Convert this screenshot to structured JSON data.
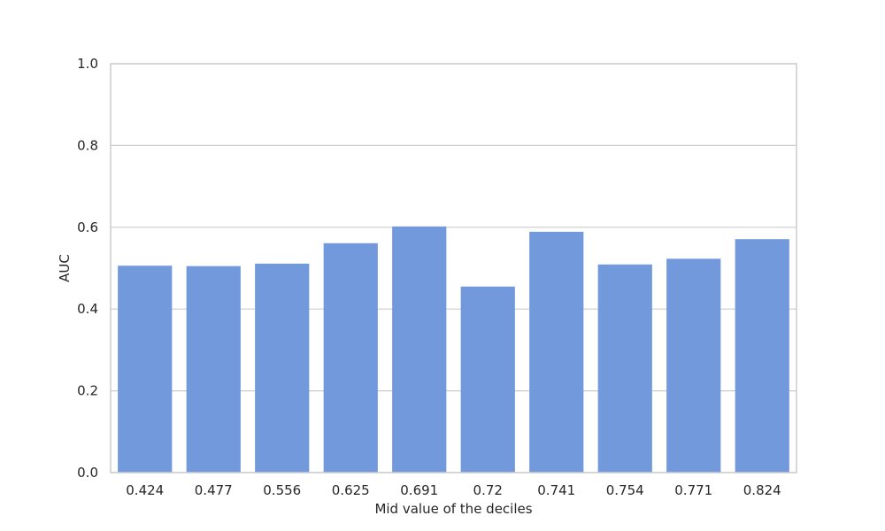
{
  "chart_data": {
    "type": "bar",
    "title": "",
    "xlabel": "Mid value of the deciles",
    "ylabel": "AUC",
    "categories": [
      "0.424",
      "0.477",
      "0.556",
      "0.625",
      "0.691",
      "0.72",
      "0.741",
      "0.754",
      "0.771",
      "0.824"
    ],
    "values": [
      0.506,
      0.505,
      0.511,
      0.561,
      0.602,
      0.455,
      0.589,
      0.509,
      0.523,
      0.571
    ],
    "ylim": [
      0,
      1.0
    ],
    "yticks": [
      "0.0",
      "0.2",
      "0.4",
      "0.6",
      "0.8",
      "1.0"
    ],
    "grid": "horizontal",
    "legend": "none",
    "colors": {
      "bar": "#7399dd",
      "grid": "#cccccc",
      "spine": "#cccccc"
    }
  }
}
